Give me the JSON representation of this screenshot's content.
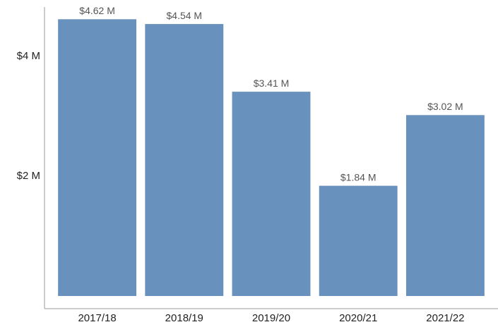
{
  "chart_data": {
    "type": "bar",
    "categories": [
      "2017/18",
      "2018/19",
      "2019/20",
      "2020/21",
      "2021/22"
    ],
    "values": [
      4.62,
      4.54,
      3.41,
      1.84,
      3.02
    ],
    "value_labels": [
      "$4.62 M",
      "$4.54 M",
      "$3.41 M",
      "$1.84 M",
      "$3.02 M"
    ],
    "color": "#6891bd",
    "ylim": [
      0,
      4.8
    ],
    "yticks": [
      {
        "value": 2,
        "label": "$2 M"
      },
      {
        "value": 4,
        "label": "$4 M"
      }
    ],
    "grid": false
  }
}
